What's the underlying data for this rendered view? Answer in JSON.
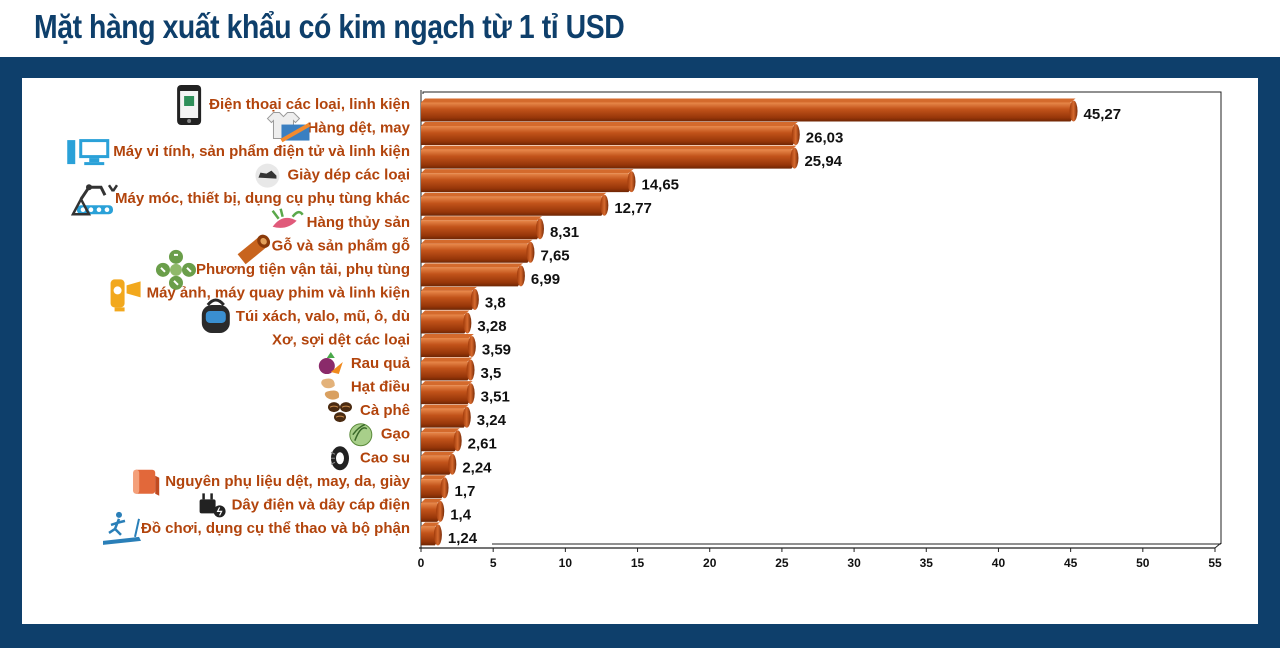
{
  "title": "Mặt hàng xuất khẩu có kim ngạch từ 1 tỉ USD",
  "colors": {
    "frame": "#0e3f6b",
    "bar": "#b34511",
    "bar_light": "#e07a3c",
    "bar_dark": "#7a2a05",
    "label": "#b2440c",
    "title": "#0e3f6b"
  },
  "chart_data": {
    "type": "bar",
    "orientation": "horizontal",
    "title": "Mặt hàng xuất khẩu có kim ngạch từ 1 tỉ USD",
    "xlabel": "",
    "ylabel": "",
    "xlim": [
      0,
      55
    ],
    "xticks": [
      0,
      5,
      10,
      15,
      20,
      25,
      30,
      35,
      40,
      45,
      50,
      55
    ],
    "grid": false,
    "categories": [
      "Điện thoại các loại, linh kiện",
      "Hàng dệt, may",
      "Máy vi tính, sản phẩm điện tử và linh kiện",
      "Giày dép các loại",
      "Máy móc, thiết bị, dụng cụ phụ tùng khác",
      "Hàng thủy sản",
      "Gỗ và sản phẩm gỗ",
      "Phương tiện vận tải, phụ tùng",
      "Máy ảnh, máy quay phim và linh kiện",
      "Túi xách, valo, mũ, ô, dù",
      "Xơ, sợi dệt các loại",
      "Rau quả",
      "Hạt điều",
      "Cà phê",
      "Gạo",
      "Cao su",
      "Nguyên phụ liệu dệt, may, da, giày",
      "Dây điện và dây cáp điện",
      "Đồ chơi, dụng cụ thể thao và bộ phận"
    ],
    "values": [
      45.27,
      26.03,
      25.94,
      14.65,
      12.77,
      8.31,
      7.65,
      6.99,
      3.8,
      3.28,
      3.59,
      3.5,
      3.51,
      3.24,
      2.61,
      2.24,
      1.7,
      1.4,
      1.24
    ],
    "value_labels": [
      "45,27",
      "26,03",
      "25,94",
      "14,65",
      "12,77",
      "8,31",
      "7,65",
      "6,99",
      "3,8",
      "3,28",
      "3,59",
      "3,5",
      "3,51",
      "3,24",
      "2,61",
      "2,24",
      "1,7",
      "1,4",
      "1,24"
    ],
    "icons": [
      "phone-icon",
      "textile-icon",
      "computer-icon",
      "shoe-icon",
      "machinery-icon",
      "seafood-icon",
      "wood-log-icon",
      "vehicle-icon",
      "camera-icon",
      "backpack-icon",
      "",
      "vegetable-icon",
      "cashew-icon",
      "coffee-bean-icon",
      "rice-icon",
      "tire-icon",
      "fabric-roll-icon",
      "cable-icon",
      "treadmill-icon"
    ]
  }
}
